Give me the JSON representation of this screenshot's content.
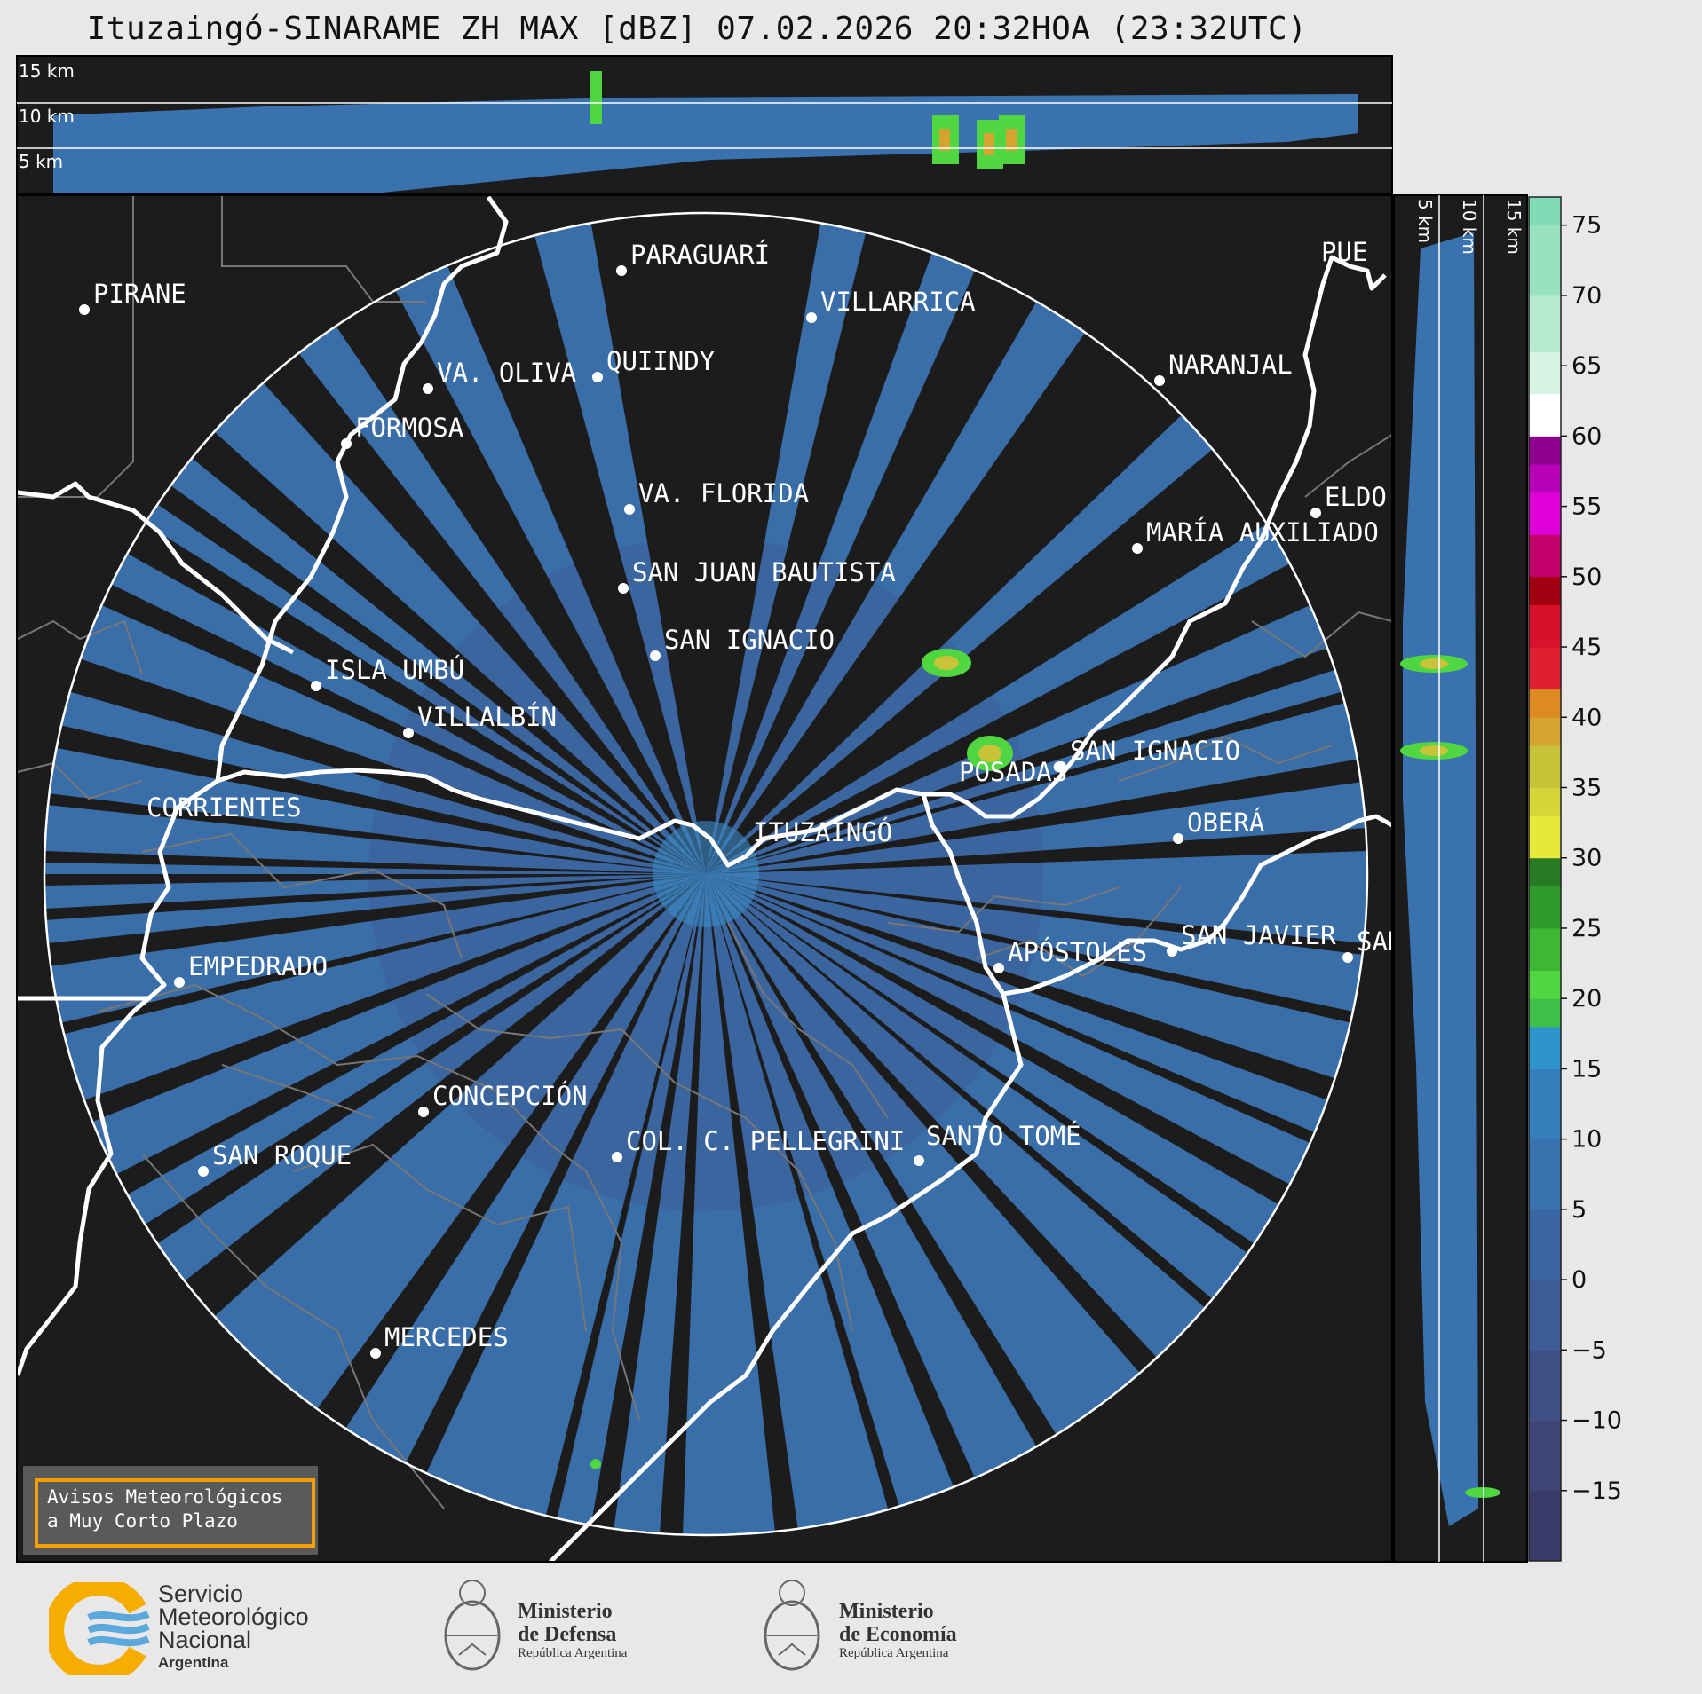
{
  "title": "Ituzaingó-SINARAME ZH MAX [dBZ] 07.02.2026 20:32HOA (23:32UTC)",
  "top_panel_heights": [
    "15 km",
    "10 km",
    "5 km"
  ],
  "side_panel_heights": [
    "5 km",
    "10 km",
    "15 km"
  ],
  "colorbar": {
    "unit": "dBZ",
    "ticks": [
      "75",
      "70",
      "65",
      "60",
      "55",
      "50",
      "45",
      "40",
      "35",
      "30",
      "25",
      "20",
      "15",
      "10",
      "5",
      "0",
      "−5",
      "−10",
      "−15"
    ],
    "range": [
      -20,
      77
    ],
    "colors": {
      "-20": "#3a3a6a",
      "-15": "#3f4677",
      "-10": "#404f86",
      "-5": "#3d5b96",
      "0": "#3a66a4",
      "5": "#3a72b0",
      "10": "#357fbb",
      "15": "#2d95cc",
      "18": "#3dbf4a",
      "20": "#4fd640",
      "22": "#3cb836",
      "25": "#2f9a2e",
      "28": "#2a7a24",
      "30": "#e8e83a",
      "33": "#d6d436",
      "35": "#c8c338",
      "38": "#d4a330",
      "40": "#de8a22",
      "42": "#e02030",
      "45": "#d8102a",
      "48": "#a00010",
      "50": "#c2006a",
      "53": "#e000d8",
      "56": "#b800b8",
      "58": "#900090",
      "60": "#ffffff",
      "63": "#d8f2e4",
      "66": "#b8ead0",
      "70": "#98e2c0",
      "75": "#80dcb8"
    }
  },
  "cities": [
    {
      "name": "PIRANE"
    },
    {
      "name": "PARAGUARÍ"
    },
    {
      "name": "VILLARRICA"
    },
    {
      "name": "QUIINDY"
    },
    {
      "name": "VA. OLIVA"
    },
    {
      "name": "FORMOSA"
    },
    {
      "name": "NARANJAL"
    },
    {
      "name": "PUE"
    },
    {
      "name": "VA. FLORIDA"
    },
    {
      "name": "ELDO"
    },
    {
      "name": "MARÍA AUXILIADO"
    },
    {
      "name": "SAN JUAN BAUTISTA"
    },
    {
      "name": "SAN IGNACIO"
    },
    {
      "name": "ISLA UMBÚ"
    },
    {
      "name": "VILLALBÍN"
    },
    {
      "name": "SAN IGNACIO"
    },
    {
      "name": "POSADAS"
    },
    {
      "name": "CORRIENTES"
    },
    {
      "name": "ITUZAINGÓ"
    },
    {
      "name": "OBERÁ"
    },
    {
      "name": "EMPEDRADO"
    },
    {
      "name": "APÓSTOLES"
    },
    {
      "name": "SAN JAVIER"
    },
    {
      "name": "SAN"
    },
    {
      "name": "CONCEPCIÓN"
    },
    {
      "name": "COL. C. PELLEGRINI"
    },
    {
      "name": "SANTO TOMÉ"
    },
    {
      "name": "SAN ROQUE"
    },
    {
      "name": "MERCEDES"
    }
  ],
  "warning_box": {
    "line1": "Avisos Meteorológicos",
    "line2": "a Muy Corto Plazo"
  },
  "logos": {
    "smn": {
      "line1": "Servicio",
      "line2": "Meteorológico",
      "line3": "Nacional",
      "line4": "Argentina"
    },
    "defensa": {
      "line1": "Ministerio",
      "line2": "de Defensa",
      "line3": "República Argentina"
    },
    "economia": {
      "line1": "Ministerio",
      "line2": "de Economía",
      "line3": "República Argentina"
    }
  }
}
